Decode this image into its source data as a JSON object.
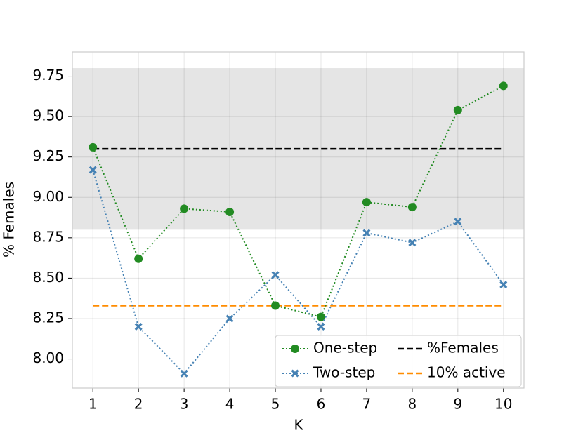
{
  "chart_data": {
    "type": "line",
    "x_label": "K",
    "y_label": "% Females",
    "x": [
      1,
      2,
      3,
      4,
      5,
      6,
      7,
      8,
      9,
      10
    ],
    "series": [
      {
        "name": "One-step",
        "color": "#228b22",
        "marker": "circle",
        "values": [
          9.31,
          8.62,
          8.93,
          8.91,
          8.33,
          8.26,
          8.97,
          8.94,
          9.54,
          9.69
        ]
      },
      {
        "name": "Two-step",
        "color": "#4682b4",
        "marker": "x",
        "values": [
          9.17,
          8.2,
          7.91,
          8.25,
          8.52,
          8.2,
          8.78,
          8.72,
          8.85,
          8.46
        ]
      }
    ],
    "reference_lines": [
      {
        "name": "%Females",
        "value": 9.3,
        "color": "#000000"
      },
      {
        "name": "10% active",
        "value": 8.33,
        "color": "#ff8c00"
      }
    ],
    "band": [
      8.8,
      9.8
    ],
    "xlim": [
      0.55,
      10.45
    ],
    "ylim": [
      7.82,
      9.9
    ],
    "xticks": [
      1,
      2,
      3,
      4,
      5,
      6,
      7,
      8,
      9,
      10
    ],
    "yticks": [
      {
        "value": 8,
        "label": "8.00"
      },
      {
        "value": 8.25,
        "label": "8.25"
      },
      {
        "value": 8.5,
        "label": "8.50"
      },
      {
        "value": 8.75,
        "label": "8.75"
      },
      {
        "value": 9,
        "label": "9.00"
      },
      {
        "value": 9.25,
        "label": "9.25"
      },
      {
        "value": 9.5,
        "label": "9.50"
      },
      {
        "value": 9.75,
        "label": "9.75"
      }
    ],
    "grid": true,
    "legend": "lower right"
  }
}
